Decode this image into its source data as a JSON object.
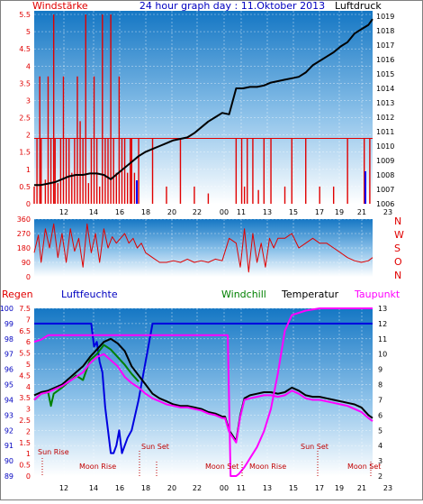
{
  "header": {
    "left_label": "Windstärke",
    "title": "24 hour graph day : 11.Oktober 2013",
    "right_label": "Luftdruck"
  },
  "time_ticks": [
    "12",
    "14",
    "16",
    "18",
    "20",
    "22",
    "00",
    "11",
    "13",
    "15",
    "17",
    "19",
    "21",
    "23"
  ],
  "compass": [
    "N",
    "W",
    "S",
    "O",
    "N"
  ],
  "lower_labels": {
    "regen": "Regen",
    "luftfeuchte": "Luftfeuchte",
    "windchill": "Windchill",
    "temperatur": "Temperatur",
    "taupunkt": "Taupunkt"
  },
  "annotations": {
    "sun_rise": "Sun Rise",
    "sun_set": "Sun Set",
    "moon_rise": "Moon Rise",
    "moon_set": "Moon Set"
  },
  "colors": {
    "border": "#7f7f7f",
    "bg_top": "#1577c4",
    "bg_bottom": "#ffffff",
    "wind": "#e00000",
    "pressure": "#000000",
    "humidity": "#0000e0",
    "windchill": "#008000",
    "temperature": "#000000",
    "dewpoint": "#ff00ff",
    "title": "#0000c0",
    "axis_left": "#e00000",
    "axis_humidity": "#0000c0",
    "annotation": "#c00000"
  },
  "chart_data": [
    {
      "type": "line",
      "title": "24 hour graph day : 11.Oktober 2013",
      "xlabel": "",
      "ylabel": "Windstärke",
      "y2label": "Luftdruck",
      "x_ticks": [
        "12",
        "14",
        "16",
        "18",
        "20",
        "22",
        "00",
        "11",
        "13",
        "15",
        "17",
        "19",
        "21",
        "23"
      ],
      "ylim": [
        0,
        5.5
      ],
      "y_ticks": [
        "0",
        "0.5",
        "1",
        "1.5",
        "2",
        "2.5",
        "3",
        "3.5",
        "4",
        "4.5",
        "5",
        "5.5"
      ],
      "y2lim": [
        1006,
        1019
      ],
      "y2_ticks": [
        "1006",
        "1007",
        "1008",
        "1009",
        "1010",
        "1011",
        "1012",
        "1013",
        "1014",
        "1015",
        "1016",
        "1017",
        "1018",
        "1019"
      ],
      "series": [
        {
          "name": "Windstärke",
          "color": "#e00000",
          "x": [
            10.5,
            10.7,
            10.9,
            11.0,
            11.3,
            11.5,
            11.7,
            11.9,
            12.0,
            12.2,
            12.4,
            12.6,
            12.8,
            13.0,
            13.2,
            13.4,
            13.6,
            13.8,
            14.0,
            14.2,
            14.4,
            14.6,
            14.8,
            15.0,
            15.2,
            15.4,
            15.6,
            15.8,
            16.0,
            16.2,
            16.4,
            16.6,
            16.8,
            17.0,
            17.2,
            17.4,
            17.5,
            17.7,
            18.0,
            18.5,
            19.0,
            19.5,
            20.0,
            20.5,
            21.0,
            21.5,
            22.0,
            22.5,
            23.0,
            23.5,
            24.5,
            25.0,
            25.2,
            25.4,
            25.6,
            25.8,
            26.0,
            26.2,
            26.4,
            26.6,
            26.8,
            27.0,
            27.2,
            27.5,
            28.0,
            28.5,
            29.0,
            29.5,
            30.0,
            30.5,
            31.0,
            31.5,
            32.0,
            32.5,
            33.0,
            33.5,
            34.0,
            34.2,
            34.4,
            34.6,
            34.8
          ],
          "values": [
            0.5,
            1.9,
            3.7,
            1.9,
            0.7,
            3.7,
            1.9,
            5.5,
            1.9,
            0.6,
            1.9,
            3.7,
            1.9,
            1.9,
            0.9,
            1.9,
            3.7,
            2.4,
            1.9,
            5.5,
            0.6,
            1.9,
            3.7,
            1.9,
            0.5,
            5.5,
            1.9,
            1.9,
            5.5,
            1.9,
            0.9,
            3.7,
            1.9,
            1.9,
            0.9,
            1.9,
            1.9,
            0.9,
            1.9,
            0,
            1.9,
            0,
            0.5,
            0,
            1.9,
            0,
            0.5,
            0,
            0.3,
            0,
            0,
            1.9,
            0,
            1.9,
            0.5,
            1.9,
            0,
            1.9,
            0,
            0.4,
            0,
            1.9,
            0,
            1.9,
            0,
            0.5,
            1.9,
            0,
            1.9,
            0,
            0.5,
            0,
            0.5,
            0,
            1.9,
            0,
            0,
            1.9,
            0,
            1.9,
            0
          ]
        },
        {
          "name": "Luftdruck",
          "color": "#000000",
          "axis": "right",
          "x": [
            10.5,
            11,
            11.5,
            12,
            12.5,
            13,
            13.5,
            14,
            14.5,
            15,
            15.5,
            16,
            16.5,
            17,
            17.5,
            18,
            18.5,
            19,
            19.5,
            20,
            20.5,
            21,
            21.5,
            22,
            22.5,
            23,
            23.5,
            24,
            24.5,
            25,
            25.5,
            26,
            26.5,
            27,
            27.5,
            28,
            28.5,
            29,
            29.5,
            30,
            30.5,
            31,
            31.5,
            32,
            32.5,
            33,
            33.5,
            34,
            34.5,
            34.8
          ],
          "values": [
            1007.3,
            1007.3,
            1007.4,
            1007.5,
            1007.7,
            1007.9,
            1008.0,
            1008.0,
            1008.1,
            1008.1,
            1008.0,
            1007.7,
            1008.1,
            1008.5,
            1008.9,
            1009.3,
            1009.6,
            1009.8,
            1010.0,
            1010.2,
            1010.4,
            1010.5,
            1010.6,
            1010.9,
            1011.3,
            1011.7,
            1012.0,
            1012.3,
            1012.2,
            1014.0,
            1014.0,
            1014.1,
            1014.1,
            1014.2,
            1014.4,
            1014.5,
            1014.6,
            1014.7,
            1014.8,
            1015.1,
            1015.6,
            1015.9,
            1016.2,
            1016.5,
            1016.9,
            1017.2,
            1017.8,
            1018.1,
            1018.4,
            1018.8
          ]
        }
      ],
      "legend": "none",
      "grid": true
    },
    {
      "type": "line",
      "xlabel": "",
      "ylabel": "",
      "ylim": [
        0,
        360
      ],
      "y_ticks": [
        "0",
        "90",
        "180",
        "270",
        "360"
      ],
      "compass_ticks": [
        "N",
        "W",
        "S",
        "O",
        "N"
      ],
      "series": [
        {
          "name": "Windrichtung",
          "color": "#e00000",
          "x": [
            10.5,
            10.8,
            11.0,
            11.3,
            11.6,
            11.9,
            12.2,
            12.5,
            12.8,
            13.1,
            13.4,
            13.7,
            14.0,
            14.3,
            14.6,
            14.9,
            15.2,
            15.5,
            15.8,
            16.1,
            16.4,
            16.7,
            17.0,
            17.3,
            17.6,
            17.9,
            18.2,
            18.5,
            19.0,
            19.5,
            20.0,
            20.5,
            21.0,
            21.5,
            22.0,
            22.5,
            23.0,
            23.5,
            24.0,
            24.5,
            25.0,
            25.3,
            25.6,
            25.9,
            26.2,
            26.5,
            26.8,
            27.1,
            27.4,
            27.7,
            28.0,
            28.5,
            29.0,
            29.5,
            30.0,
            30.5,
            31.0,
            31.5,
            32.0,
            32.5,
            33.0,
            33.5,
            34.0,
            34.5,
            34.8
          ],
          "values": [
            150,
            260,
            90,
            300,
            180,
            330,
            120,
            270,
            90,
            300,
            160,
            240,
            60,
            330,
            150,
            270,
            90,
            300,
            180,
            250,
            210,
            240,
            270,
            210,
            240,
            180,
            210,
            150,
            120,
            90,
            90,
            100,
            90,
            110,
            90,
            100,
            90,
            110,
            100,
            240,
            210,
            60,
            300,
            30,
            270,
            90,
            210,
            60,
            240,
            180,
            240,
            240,
            270,
            180,
            210,
            240,
            210,
            210,
            180,
            150,
            120,
            100,
            90,
            100,
            120
          ]
        }
      ],
      "legend": "none",
      "grid": true
    },
    {
      "type": "line",
      "title": "",
      "xlabel": "",
      "ylabel": "Regen / Luftfeuchte",
      "y2label": "Temperatur",
      "ylim_regen": [
        0,
        7.5
      ],
      "regen_ticks": [
        "0",
        "0.5",
        "1",
        "1.5",
        "2",
        "2.5",
        "3",
        "3.5",
        "4",
        "4.5",
        "5",
        "5.5",
        "6",
        "6.5",
        "7",
        "7.5"
      ],
      "ylim_humidity": [
        89,
        100
      ],
      "humidity_ticks": [
        "89",
        "90",
        "91",
        "92",
        "93",
        "94",
        "95",
        "96",
        "97",
        "98",
        "99",
        "100"
      ],
      "y2lim": [
        2,
        13
      ],
      "y2_ticks": [
        "2",
        "3",
        "4",
        "5",
        "6",
        "7",
        "8",
        "9",
        "10",
        "11",
        "12",
        "13"
      ],
      "series": [
        {
          "name": "Luftfeuchte",
          "color": "#0000e0",
          "x": [
            10.5,
            14.6,
            14.8,
            15.0,
            15.2,
            15.4,
            15.6,
            15.8,
            16.0,
            16.2,
            16.4,
            16.6,
            16.8,
            17.0,
            17.2,
            17.5,
            18.0,
            18.2,
            18.4,
            18.6,
            18.8,
            19.0,
            19.5,
            25.8,
            26.0,
            34.8
          ],
          "values": [
            99,
            99,
            97.5,
            97.8,
            96.5,
            95.8,
            93.5,
            92,
            90.5,
            90.5,
            91,
            92,
            90.5,
            91,
            91.5,
            92,
            94,
            95,
            96,
            97,
            98,
            99,
            99,
            99,
            99,
            99
          ]
        },
        {
          "name": "Temperatur",
          "color": "#000000",
          "axis": "right",
          "x": [
            10.5,
            11,
            11.5,
            12,
            12.5,
            13,
            13.5,
            14,
            14.5,
            15,
            15.5,
            16,
            16.5,
            17,
            17.5,
            18,
            18.5,
            19,
            19.5,
            20,
            20.5,
            21,
            21.5,
            22,
            22.5,
            23,
            23.5,
            24,
            24.2,
            24.5,
            25,
            25.3,
            25.6,
            26,
            26.5,
            27,
            27.5,
            28,
            28.5,
            29,
            29.5,
            30,
            30.5,
            31,
            31.5,
            32,
            32.5,
            33,
            33.5,
            34,
            34.5,
            34.8
          ],
          "values": [
            7.3,
            7.5,
            7.6,
            7.8,
            8.0,
            8.4,
            8.8,
            9.2,
            9.8,
            10.3,
            10.8,
            11.0,
            10.7,
            10.2,
            9.2,
            8.6,
            8.0,
            7.4,
            7.1,
            6.9,
            6.7,
            6.6,
            6.6,
            6.5,
            6.4,
            6.2,
            6.1,
            5.9,
            5.9,
            5.0,
            4.3,
            6.0,
            7.1,
            7.3,
            7.4,
            7.5,
            7.5,
            7.4,
            7.5,
            7.8,
            7.6,
            7.3,
            7.2,
            7.2,
            7.1,
            7.0,
            6.9,
            6.8,
            6.7,
            6.5,
            6.0,
            5.8
          ]
        },
        {
          "name": "Windchill",
          "color": "#008000",
          "axis": "right",
          "x": [
            10.5,
            11,
            11.5,
            11.7,
            11.9,
            12.5,
            13,
            13.5,
            14,
            14.5,
            15,
            15.5,
            16,
            16.5,
            17,
            17.5,
            18
          ],
          "values": [
            7.0,
            7.4,
            7.5,
            6.6,
            7.4,
            7.8,
            8.2,
            8.6,
            8.3,
            9.6,
            10.0,
            10.6,
            10.3,
            9.8,
            9.3,
            8.7,
            8.2
          ]
        },
        {
          "name": "Taupunkt",
          "color": "#ff00ff",
          "axis": "right",
          "x": [
            10.5,
            11,
            11.5,
            12,
            12.5,
            13,
            13.5,
            14,
            14.5,
            15,
            15.5,
            16,
            16.5,
            17,
            17.5,
            18,
            18.5,
            19,
            19.5,
            20,
            20.5,
            21,
            21.5,
            22,
            22.5,
            23,
            23.5,
            24,
            24.2,
            24.5,
            25,
            25.3,
            25.6,
            26,
            26.5,
            27,
            27.5,
            28,
            28.5,
            29,
            29.5,
            30,
            30.5,
            31,
            31.5,
            32,
            32.5,
            33,
            33.5,
            34,
            34.5,
            34.8
          ],
          "values": [
            7.0,
            7.4,
            7.5,
            7.7,
            7.9,
            8.2,
            8.5,
            8.8,
            9.4,
            9.8,
            10.0,
            9.6,
            9.2,
            8.5,
            8.1,
            7.8,
            7.4,
            7.1,
            6.9,
            6.7,
            6.6,
            6.5,
            6.5,
            6.4,
            6.3,
            6.1,
            6.0,
            5.8,
            5.8,
            4.9,
            4.2,
            5.9,
            7.0,
            7.1,
            7.2,
            7.3,
            7.3,
            7.2,
            7.3,
            7.6,
            7.4,
            7.1,
            7.0,
            7.0,
            6.9,
            6.8,
            6.7,
            6.6,
            6.4,
            6.2,
            5.8,
            5.6
          ]
        },
        {
          "name": "Regen",
          "color": "#ff00ff",
          "axis": "regen",
          "x": [
            10.5,
            11.0,
            11.5,
            12,
            13,
            14,
            15,
            16,
            17,
            18,
            19,
            20,
            21,
            22,
            23,
            24,
            24.4,
            24.6,
            25,
            25.2,
            25.6,
            26,
            26.5,
            27,
            27.5,
            28,
            28.5,
            29,
            30,
            31,
            32,
            33,
            34,
            34.8
          ],
          "values": [
            6.0,
            6.1,
            6.3,
            6.3,
            6.3,
            6.3,
            6.3,
            6.3,
            6.3,
            6.3,
            6.3,
            6.3,
            6.3,
            6.3,
            6.3,
            6.3,
            6.3,
            0,
            0,
            0.1,
            0.4,
            0.8,
            1.3,
            2.0,
            3.0,
            4.6,
            6.5,
            7.2,
            7.4,
            7.5,
            7.5,
            7.5,
            7.5,
            7.5
          ]
        }
      ],
      "legend": "top",
      "grid": true
    }
  ]
}
